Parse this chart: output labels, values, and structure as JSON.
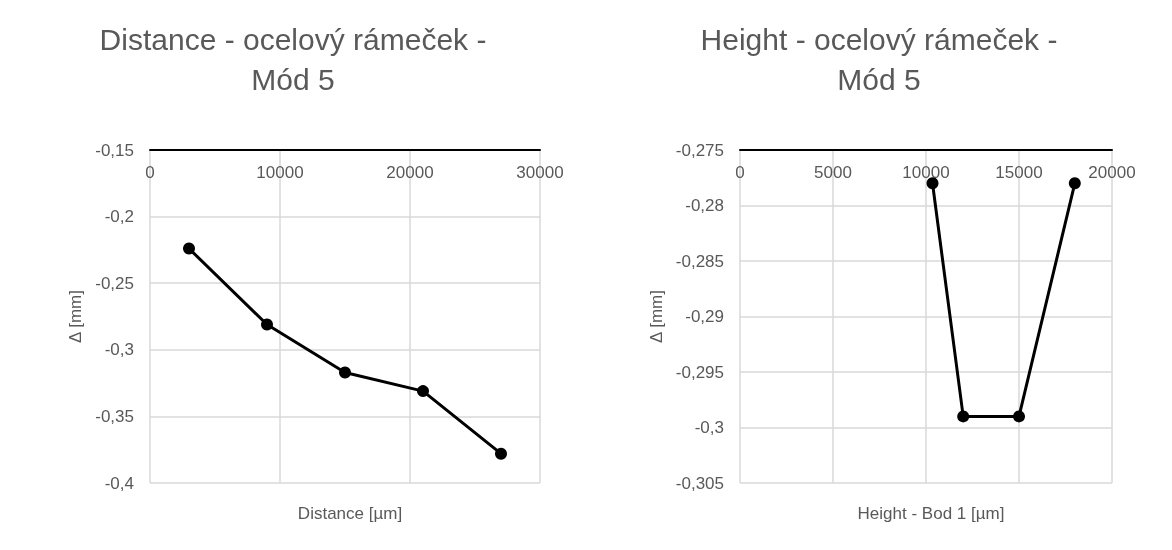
{
  "chart_data": [
    {
      "type": "line",
      "title": "Distance - ocelový rámeček -\nMód 5",
      "xlabel": "Distance [µm]",
      "ylabel": "Δ [mm]",
      "x": [
        3000,
        9000,
        15000,
        21000,
        27000
      ],
      "series": [
        {
          "color": "#000000",
          "values": [
            -0.224,
            -0.281,
            -0.317,
            -0.331,
            -0.378
          ]
        }
      ],
      "xlim": [
        0,
        30000
      ],
      "xticks": [
        0,
        10000,
        20000,
        30000
      ],
      "ylim": [
        -0.4,
        -0.15
      ],
      "yticks": [
        {
          "value": -0.4,
          "label": "-0,4"
        },
        {
          "value": -0.35,
          "label": "-0,35"
        },
        {
          "value": -0.3,
          "label": "-0,3"
        },
        {
          "value": -0.25,
          "label": "-0,25"
        },
        {
          "value": -0.2,
          "label": "-0,2"
        },
        {
          "value": -0.15,
          "label": "-0,15"
        }
      ],
      "grid": true,
      "marker": "circle",
      "line_style": "solid"
    },
    {
      "type": "line",
      "title": "Height - ocelový rámeček -\nMód 5",
      "xlabel": "Height - Bod 1 [µm]",
      "ylabel": "Δ [mm]",
      "x": [
        10350,
        12000,
        15000,
        18000
      ],
      "series": [
        {
          "color": "#000000",
          "values": [
            -0.278,
            -0.299,
            -0.299,
            -0.278
          ]
        }
      ],
      "xlim": [
        0,
        20000
      ],
      "xticks": [
        0,
        5000,
        10000,
        15000,
        20000
      ],
      "ylim": [
        -0.305,
        -0.275
      ],
      "yticks": [
        {
          "value": -0.305,
          "label": "-0,305"
        },
        {
          "value": -0.3,
          "label": "-0,3"
        },
        {
          "value": -0.295,
          "label": "-0,295"
        },
        {
          "value": -0.29,
          "label": "-0,29"
        },
        {
          "value": -0.285,
          "label": "-0,285"
        },
        {
          "value": -0.28,
          "label": "-0,28"
        },
        {
          "value": -0.275,
          "label": "-0,275"
        }
      ],
      "grid": true,
      "marker": "circle",
      "line_style": "solid"
    }
  ]
}
